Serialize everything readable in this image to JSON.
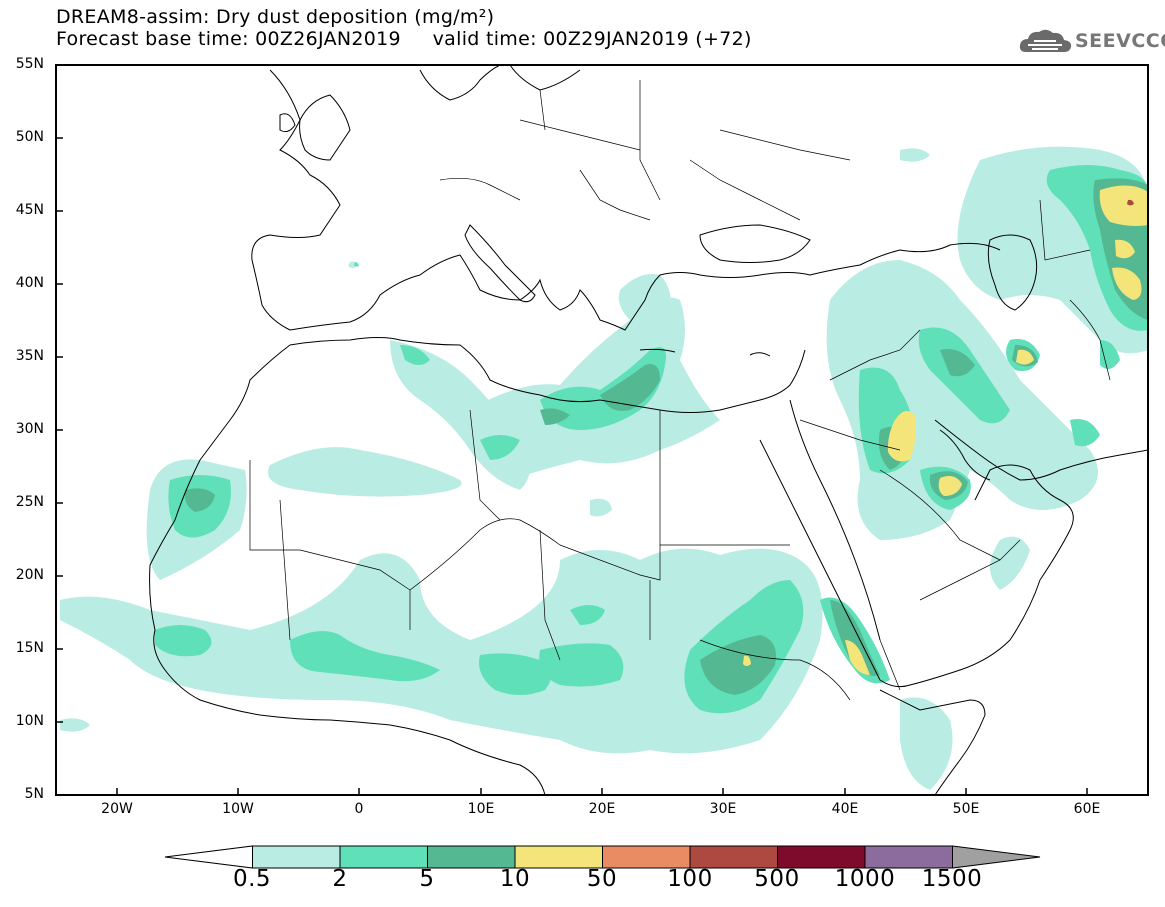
{
  "title": {
    "line1": "DREAM8-assim: Dry dust deposition (mg/m²)",
    "line2": "Forecast base time: 00Z26JAN2019     valid time: 00Z29JAN2019 (+72)"
  },
  "logo": {
    "text": "SEEVCCC",
    "icon": "cloud-icon",
    "color": "#666666"
  },
  "axes": {
    "y_labels": [
      "55N",
      "50N",
      "45N",
      "40N",
      "35N",
      "30N",
      "25N",
      "20N",
      "15N",
      "10N",
      "5N"
    ],
    "x_labels": [
      "20W",
      "10W",
      "0",
      "10E",
      "20E",
      "30E",
      "40E",
      "50E",
      "60E"
    ]
  },
  "colorbar": {
    "labels": [
      "0.5",
      "2",
      "5",
      "10",
      "50",
      "100",
      "500",
      "1000",
      "1500"
    ],
    "colors": [
      "#ffffff",
      "#b9ece3",
      "#5fe0b8",
      "#54b992",
      "#f3e57a",
      "#ea8c63",
      "#ad4941",
      "#7e0b2b",
      "#8b6c9d",
      "#a0a0a0"
    ]
  }
}
